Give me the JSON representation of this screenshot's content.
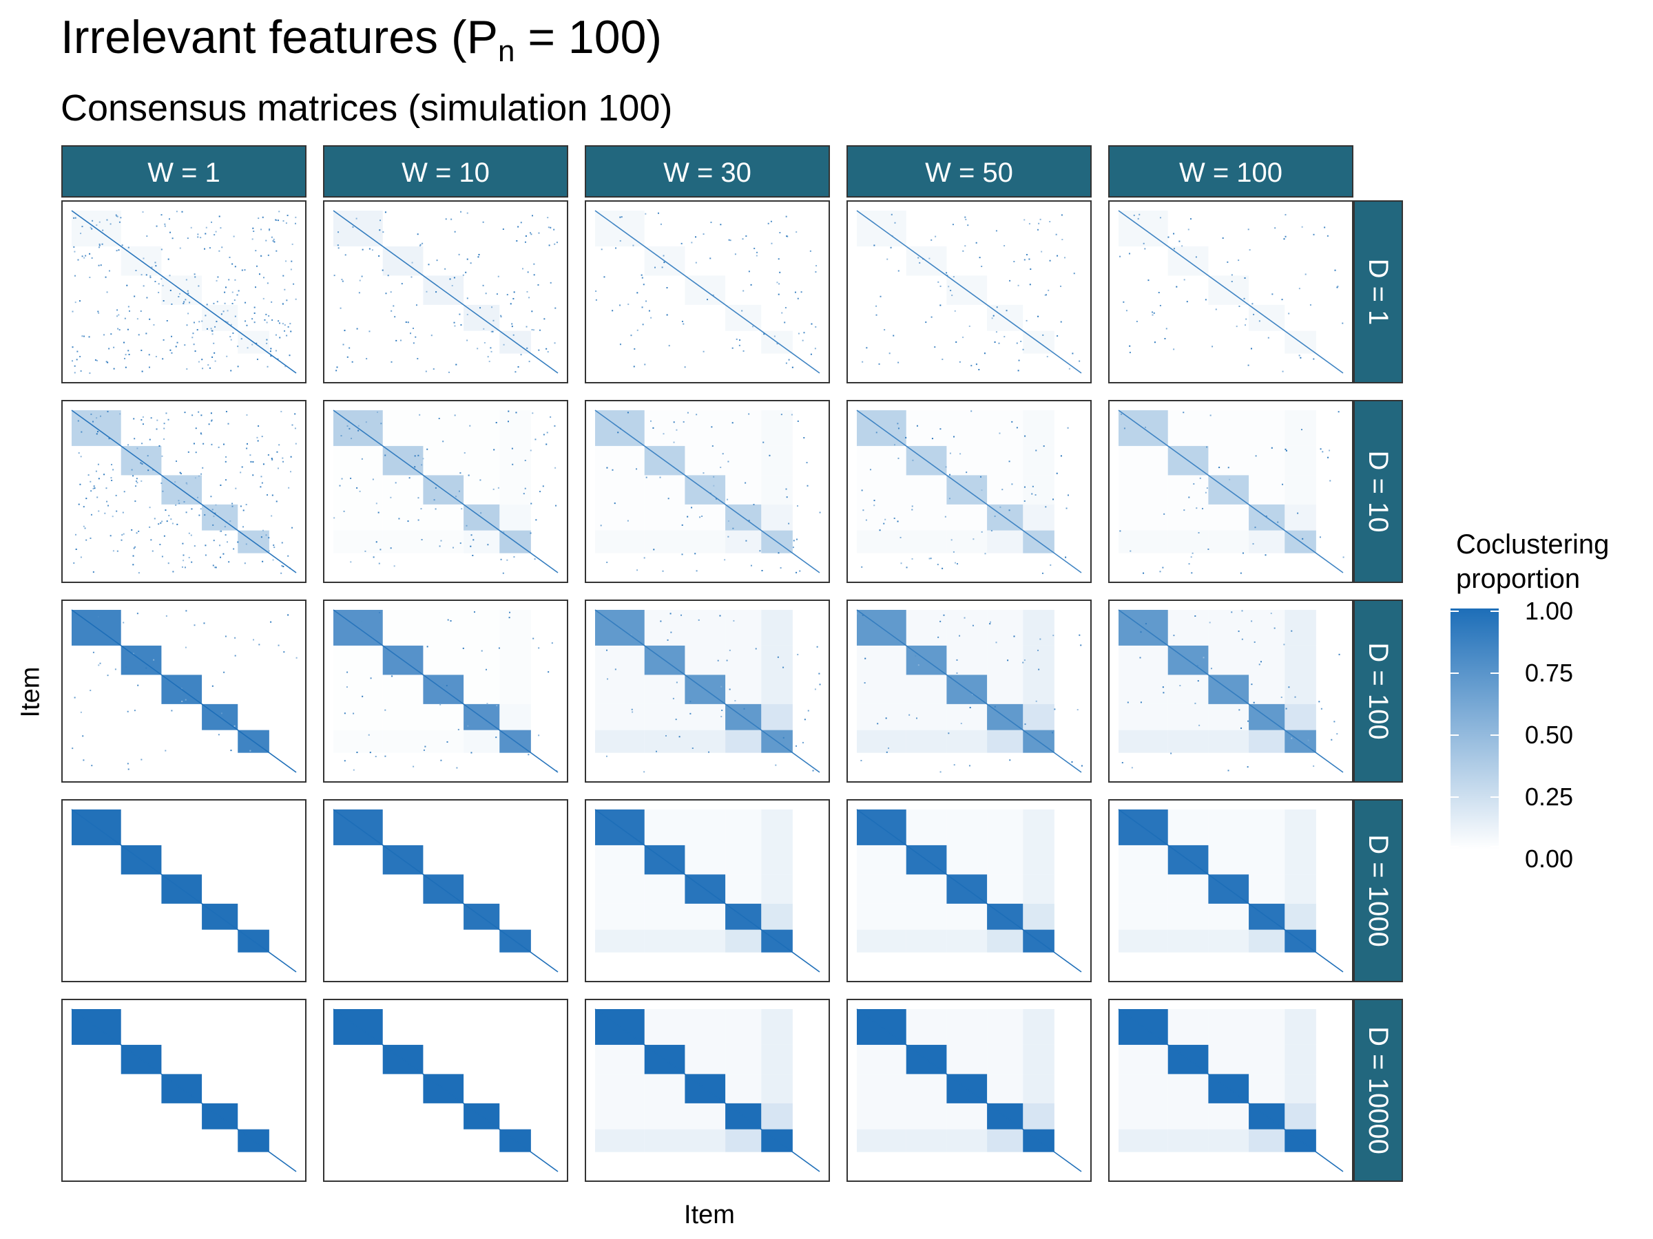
{
  "title": {
    "main": "Irrelevant features (P",
    "sub": "n",
    "tail": " = 100)"
  },
  "subtitle": "Consensus matrices (simulation 100)",
  "chart_data": {
    "type": "heatmap",
    "xlabel": "Item",
    "ylabel": "Item",
    "facet_columns": [
      "W = 1",
      "W = 10",
      "W = 30",
      "W = 50",
      "W = 100"
    ],
    "facet_rows": [
      "D = 1",
      "D = 10",
      "D = 100",
      "D = 1000",
      "D = 10000"
    ],
    "legend": {
      "title_lines": [
        "Coclustering",
        "proportion"
      ],
      "ticks": [
        "1.00",
        "0.75",
        "0.50",
        "0.25",
        "0.00"
      ],
      "range": [
        0,
        1
      ],
      "low_color": "#ffffff",
      "high_color": "#1d6eb8",
      "placement": "right"
    },
    "cluster_sizes": [
      0.22,
      0.18,
      0.18,
      0.16,
      0.14
    ],
    "panels": [
      [
        {
          "block": 0.05,
          "noise": 0.12,
          "off": 0.0,
          "diag": 0.95
        },
        {
          "block": 0.08,
          "noise": 0.06,
          "off": 0.0,
          "diag": 0.9
        },
        {
          "block": 0.05,
          "noise": 0.04,
          "off": 0.0,
          "diag": 0.85
        },
        {
          "block": 0.05,
          "noise": 0.04,
          "off": 0.0,
          "diag": 0.85
        },
        {
          "block": 0.05,
          "noise": 0.03,
          "off": 0.0,
          "diag": 0.85
        }
      ],
      [
        {
          "block": 0.3,
          "noise": 0.1,
          "off": 0.0,
          "diag": 0.95
        },
        {
          "block": 0.32,
          "noise": 0.04,
          "off": 0.02,
          "diag": 0.9
        },
        {
          "block": 0.3,
          "noise": 0.03,
          "off": 0.03,
          "diag": 0.85
        },
        {
          "block": 0.3,
          "noise": 0.03,
          "off": 0.03,
          "diag": 0.85
        },
        {
          "block": 0.3,
          "noise": 0.02,
          "off": 0.03,
          "diag": 0.85
        }
      ],
      [
        {
          "block": 0.85,
          "noise": 0.02,
          "off": 0.0,
          "diag": 1.0
        },
        {
          "block": 0.75,
          "noise": 0.02,
          "off": 0.02,
          "diag": 0.95
        },
        {
          "block": 0.7,
          "noise": 0.02,
          "off": 0.08,
          "diag": 0.9
        },
        {
          "block": 0.7,
          "noise": 0.02,
          "off": 0.08,
          "diag": 0.9
        },
        {
          "block": 0.7,
          "noise": 0.02,
          "off": 0.08,
          "diag": 0.9
        }
      ],
      [
        {
          "block": 0.98,
          "noise": 0.0,
          "off": 0.0,
          "diag": 1.0
        },
        {
          "block": 0.95,
          "noise": 0.0,
          "off": 0.0,
          "diag": 1.0
        },
        {
          "block": 0.95,
          "noise": 0.0,
          "off": 0.07,
          "diag": 1.0
        },
        {
          "block": 0.95,
          "noise": 0.0,
          "off": 0.07,
          "diag": 1.0
        },
        {
          "block": 0.95,
          "noise": 0.0,
          "off": 0.07,
          "diag": 1.0
        }
      ],
      [
        {
          "block": 1.0,
          "noise": 0.0,
          "off": 0.0,
          "diag": 1.0
        },
        {
          "block": 1.0,
          "noise": 0.0,
          "off": 0.0,
          "diag": 1.0
        },
        {
          "block": 1.0,
          "noise": 0.0,
          "off": 0.08,
          "diag": 1.0
        },
        {
          "block": 1.0,
          "noise": 0.0,
          "off": 0.08,
          "diag": 1.0
        },
        {
          "block": 1.0,
          "noise": 0.0,
          "off": 0.08,
          "diag": 1.0
        }
      ]
    ]
  },
  "colors": {
    "strip_fill": "#22677e",
    "strip_text": "#ffffff",
    "panel_border": "#333333"
  }
}
